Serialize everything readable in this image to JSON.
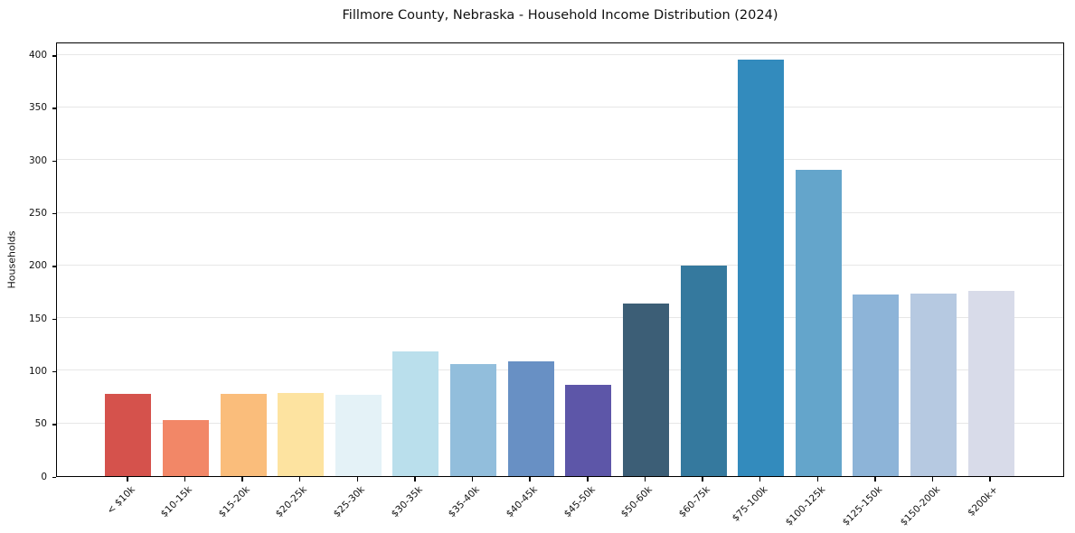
{
  "chart_data": {
    "type": "bar",
    "title": "Fillmore County, Nebraska - Household Income Distribution (2024)",
    "xlabel": "",
    "ylabel": "Households",
    "ylim": [
      0,
      400
    ],
    "yticks": [
      0,
      50,
      100,
      150,
      200,
      250,
      300,
      350,
      400
    ],
    "grid": "horizontal",
    "legend_position": "none",
    "categories": [
      "< $10k",
      "$10-15k",
      "$15-20k",
      "$20-25k",
      "$25-30k",
      "$30-35k",
      "$35-40k",
      "$40-45k",
      "$45-50k",
      "$50-60k",
      "$60-75k",
      "$75-100k",
      "$100-125k",
      "$125-150k",
      "$150-200k",
      "$200k+"
    ],
    "values": [
      78,
      53,
      78,
      79,
      77,
      118,
      106,
      109,
      87,
      164,
      200,
      395,
      291,
      172,
      173,
      176
    ],
    "bar_colors": [
      "#d5524c",
      "#f28767",
      "#fabd7b",
      "#fde3a0",
      "#e4f2f7",
      "#badfec",
      "#92bedc",
      "#6890c4",
      "#5d56a8",
      "#3c5e76",
      "#35799e",
      "#338bbd",
      "#64a5cb",
      "#8db4d8",
      "#b6c9e1",
      "#d8dbe9"
    ]
  }
}
